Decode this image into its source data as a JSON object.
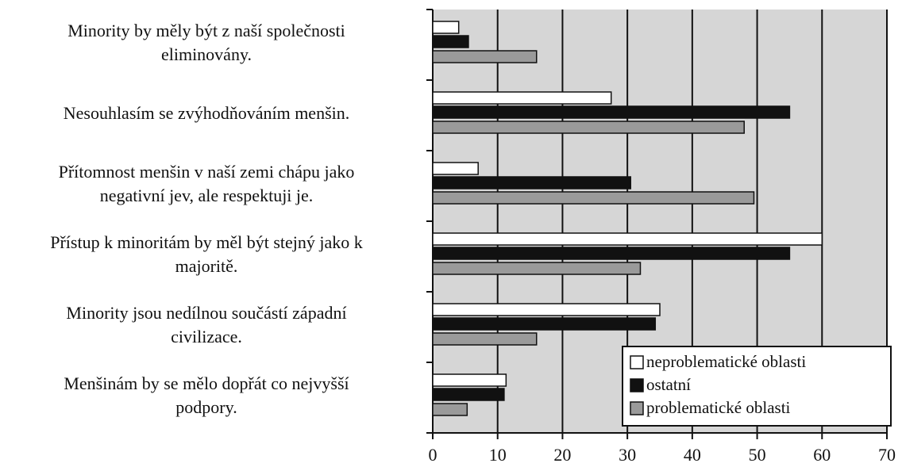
{
  "chart_data": {
    "type": "bar",
    "orientation": "horizontal",
    "categories": [
      "Minority by měly být z naší společnosti\neliminovány.",
      "Nesouhlasím se zvýhodňováním menšin.",
      "Přítomnost menšin v naší zemi chápu jako\nnegativní jev, ale respektuji je.",
      "Přístup k minoritám by měl být stejný jako k\nmajoritě.",
      "Minority jsou nedílnou součástí západní\ncivilizace.",
      "Menšinám by se mělo dopřát co nejvyšší\npodpory."
    ],
    "series": [
      {
        "name": "neproblematické oblasti",
        "color": "#ffffff",
        "values": [
          4,
          27.5,
          7,
          60,
          35,
          11.3
        ]
      },
      {
        "name": "ostatní",
        "color": "#111111",
        "values": [
          5.5,
          55,
          30.5,
          55,
          34.3,
          11
        ]
      },
      {
        "name": "problematické oblasti",
        "color": "#9a9a9a",
        "values": [
          16,
          48,
          49.5,
          32,
          16,
          5.3
        ]
      }
    ],
    "xlim": [
      0,
      70
    ],
    "xticks": [
      0,
      10,
      20,
      30,
      40,
      50,
      60,
      70
    ],
    "grid": true,
    "legend": "lower right"
  }
}
